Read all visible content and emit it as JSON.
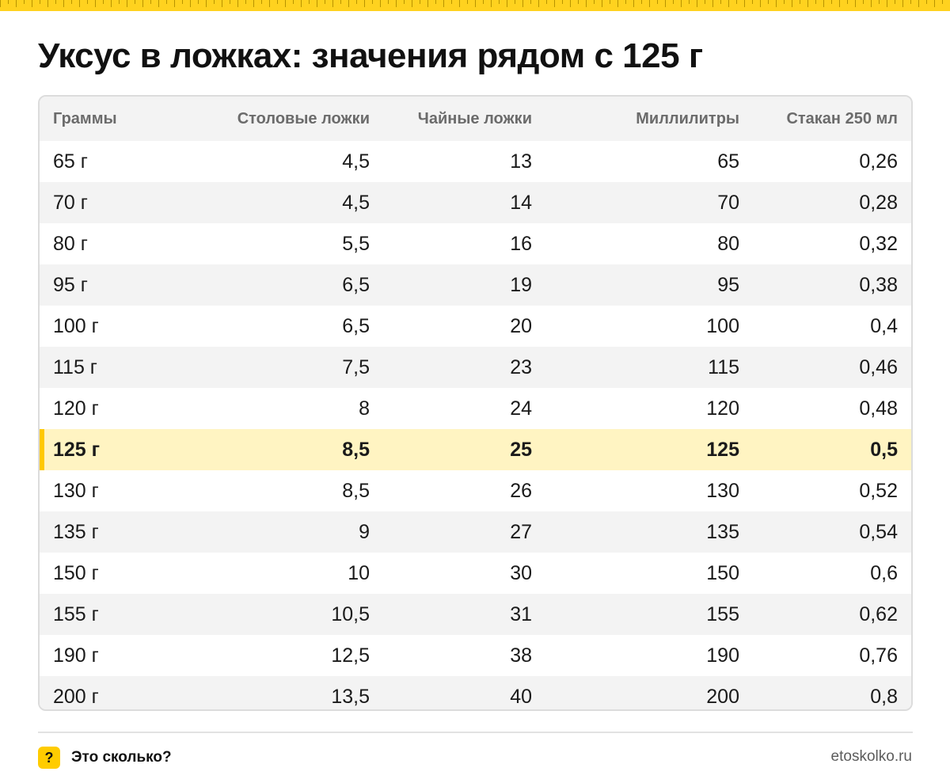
{
  "title": "Уксус в ложках: значения рядом с 125 г",
  "table": {
    "headers": [
      "Граммы",
      "Столовые ложки",
      "Чайные ложки",
      "Миллилитры",
      "Стакан 250 мл"
    ],
    "highlight_row": 7,
    "rows": [
      [
        "65 г",
        "4,5",
        "13",
        "65",
        "0,26"
      ],
      [
        "70 г",
        "4,5",
        "14",
        "70",
        "0,28"
      ],
      [
        "80 г",
        "5,5",
        "16",
        "80",
        "0,32"
      ],
      [
        "95 г",
        "6,5",
        "19",
        "95",
        "0,38"
      ],
      [
        "100 г",
        "6,5",
        "20",
        "100",
        "0,4"
      ],
      [
        "115 г",
        "7,5",
        "23",
        "115",
        "0,46"
      ],
      [
        "120 г",
        "8",
        "24",
        "120",
        "0,48"
      ],
      [
        "125 г",
        "8,5",
        "25",
        "125",
        "0,5"
      ],
      [
        "130 г",
        "8,5",
        "26",
        "130",
        "0,52"
      ],
      [
        "135 г",
        "9",
        "27",
        "135",
        "0,54"
      ],
      [
        "150 г",
        "10",
        "30",
        "150",
        "0,6"
      ],
      [
        "155 г",
        "10,5",
        "31",
        "155",
        "0,62"
      ],
      [
        "190 г",
        "12,5",
        "38",
        "190",
        "0,76"
      ],
      [
        "200 г",
        "13,5",
        "40",
        "200",
        "0,8"
      ]
    ]
  },
  "footer": {
    "badge": "?",
    "brand": "Это сколько?",
    "site": "etoskolko.ru"
  },
  "colors": {
    "accent": "#ffcc00",
    "highlight_bg": "#fff4c2",
    "stripe": "#f3f3f3"
  }
}
